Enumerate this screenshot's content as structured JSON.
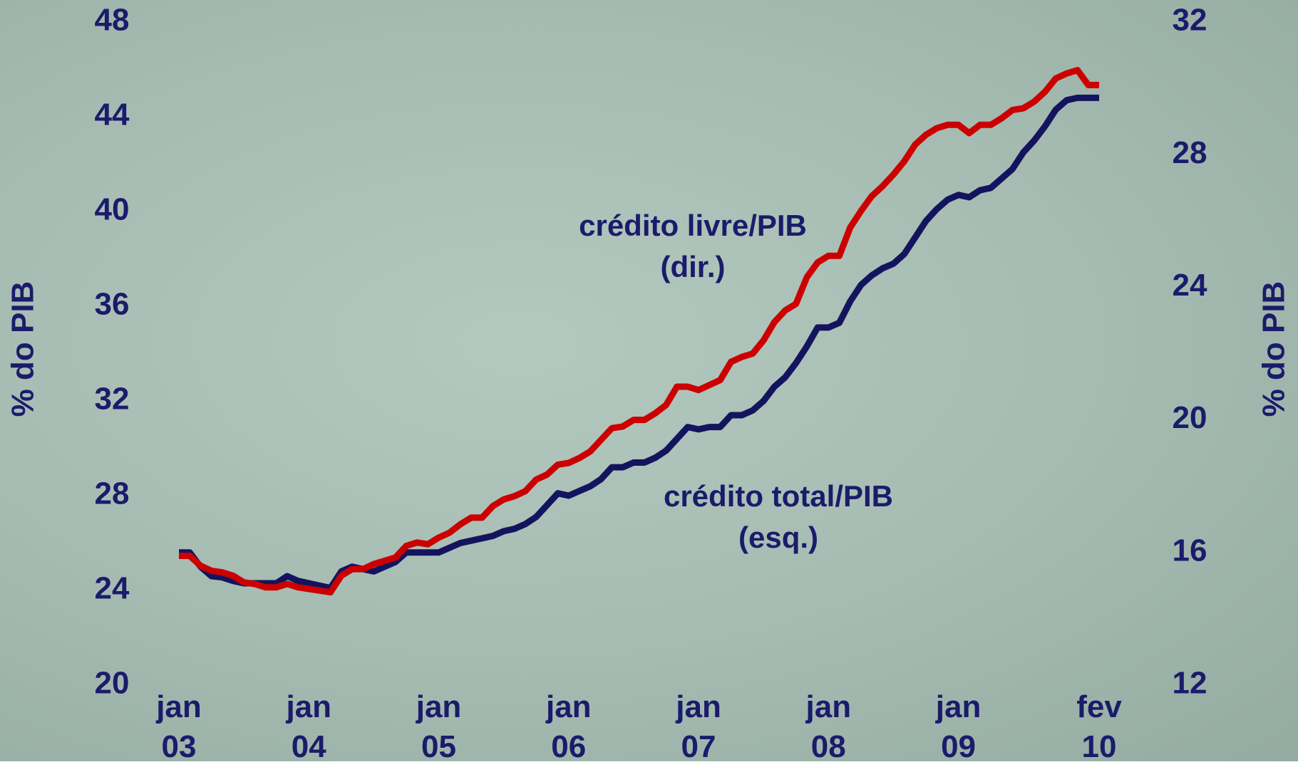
{
  "chart_data": {
    "type": "line",
    "y_label": "% do PIB",
    "y2_label": "% do PIB",
    "categories": [
      "jan\n03",
      null,
      null,
      null,
      null,
      null,
      null,
      null,
      null,
      null,
      null,
      null,
      "jan\n04",
      null,
      null,
      null,
      null,
      null,
      null,
      null,
      null,
      null,
      null,
      null,
      "jan\n05",
      null,
      null,
      null,
      null,
      null,
      null,
      null,
      null,
      null,
      null,
      null,
      "jan\n06",
      null,
      null,
      null,
      null,
      null,
      null,
      null,
      null,
      null,
      null,
      null,
      "jan\n07",
      null,
      null,
      null,
      null,
      null,
      null,
      null,
      null,
      null,
      null,
      null,
      "jan\n08",
      null,
      null,
      null,
      null,
      null,
      null,
      null,
      null,
      null,
      null,
      null,
      "jan\n09",
      null,
      null,
      null,
      null,
      null,
      null,
      null,
      null,
      null,
      null,
      null,
      null,
      "fev\n10"
    ],
    "series": [
      {
        "name": "crédito total/PIB\n(esq.)",
        "color": "#14145e",
        "axis": "y",
        "values": [
          25.6,
          25.6,
          25.0,
          24.6,
          24.55,
          24.4,
          24.3,
          24.3,
          24.3,
          24.3,
          24.6,
          24.4,
          24.3,
          24.2,
          24.1,
          24.8,
          25.0,
          24.9,
          24.8,
          25.0,
          25.2,
          25.6,
          25.6,
          25.6,
          25.6,
          25.8,
          26.0,
          26.1,
          26.2,
          26.3,
          26.5,
          26.6,
          26.8,
          27.1,
          27.6,
          28.1,
          28.0,
          28.2,
          28.4,
          28.7,
          29.2,
          29.2,
          29.4,
          29.4,
          29.6,
          29.9,
          30.4,
          30.9,
          30.8,
          30.9,
          30.9,
          31.4,
          31.4,
          31.6,
          32.0,
          32.6,
          33.0,
          33.6,
          34.3,
          35.1,
          35.1,
          35.3,
          36.2,
          36.9,
          37.3,
          37.6,
          37.8,
          38.2,
          38.9,
          39.6,
          40.1,
          40.5,
          40.7,
          40.6,
          40.9,
          41.0,
          41.4,
          41.8,
          42.5,
          43.0,
          43.6,
          44.3,
          44.7,
          44.8,
          44.8,
          44.8
        ]
      },
      {
        "name": "crédito livre/PIB\n(dir.)",
        "color": "#cc0000",
        "axis": "y2",
        "values": [
          15.9,
          15.9,
          15.6,
          15.45,
          15.4,
          15.3,
          15.1,
          15.05,
          14.95,
          14.95,
          15.05,
          14.95,
          14.9,
          14.85,
          14.8,
          15.3,
          15.5,
          15.5,
          15.65,
          15.75,
          15.85,
          16.2,
          16.3,
          16.25,
          16.45,
          16.6,
          16.85,
          17.05,
          17.05,
          17.4,
          17.6,
          17.7,
          17.85,
          18.2,
          18.35,
          18.65,
          18.7,
          18.85,
          19.05,
          19.4,
          19.75,
          19.8,
          20.0,
          20.0,
          20.2,
          20.45,
          21.0,
          21.0,
          20.9,
          21.05,
          21.2,
          21.75,
          21.9,
          22.0,
          22.4,
          22.95,
          23.3,
          23.5,
          24.3,
          24.75,
          24.95,
          24.95,
          25.8,
          26.3,
          26.75,
          27.05,
          27.4,
          27.8,
          28.3,
          28.6,
          28.8,
          28.9,
          28.9,
          28.65,
          28.9,
          28.9,
          29.1,
          29.35,
          29.4,
          29.6,
          29.9,
          30.3,
          30.45,
          30.55,
          30.1,
          30.1
        ]
      }
    ],
    "ylim": [
      20,
      48
    ],
    "yticks": [
      20,
      24,
      28,
      32,
      36,
      40,
      44,
      48
    ],
    "y2lim": [
      12,
      32
    ],
    "y2ticks": [
      12,
      16,
      20,
      24,
      28,
      32
    ],
    "grid": false
  }
}
